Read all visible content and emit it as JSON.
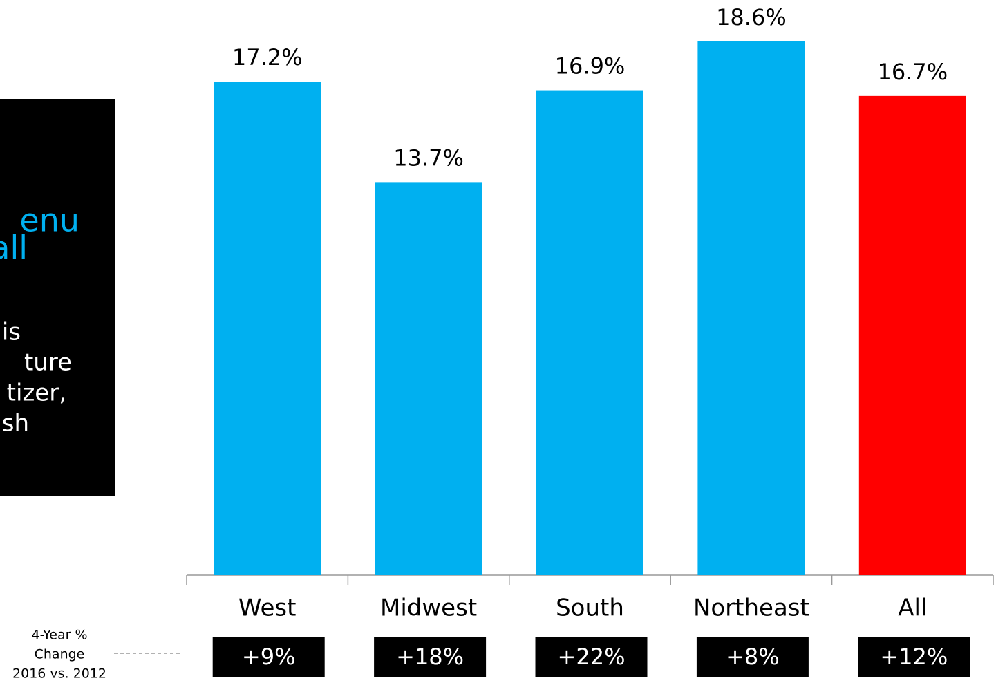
{
  "chart_data": {
    "type": "bar",
    "categories": [
      "West",
      "Midwest",
      "South",
      "Northeast",
      "All"
    ],
    "values": [
      17.2,
      13.7,
      16.9,
      18.6,
      16.7
    ],
    "value_labels": [
      "17.2%",
      "13.7%",
      "16.9%",
      "18.6%",
      "16.7%"
    ],
    "colors": [
      "#00b0f0",
      "#00b0f0",
      "#00b0f0",
      "#00b0f0",
      "#ff0000"
    ],
    "changes": {
      "label": [
        "4-Year %",
        "Change",
        "2016 vs. 2012"
      ],
      "values": [
        9,
        18,
        22,
        8,
        12
      ],
      "value_labels": [
        "+9%",
        "+18%",
        "+22%",
        "+8%",
        "+12%"
      ]
    },
    "side_panel": {
      "heading": [
        "enu",
        "all"
      ],
      "body": [
        "is",
        "ture",
        "tizer,",
        "sh"
      ]
    }
  }
}
